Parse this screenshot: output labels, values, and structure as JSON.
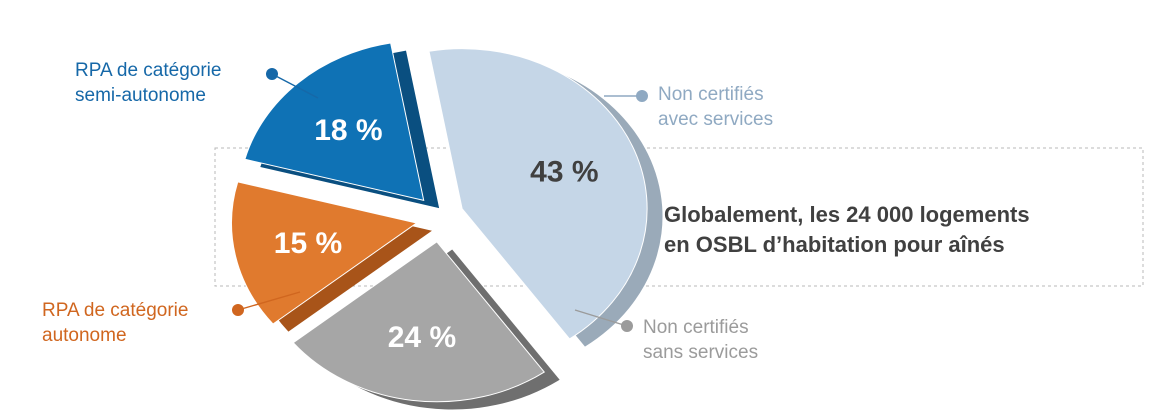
{
  "chart_data": {
    "type": "pie",
    "title": "",
    "slices": [
      {
        "key": "non-certifies-avec-services",
        "value": 43,
        "display": "43 %",
        "label_lines": [
          "Non certifiés",
          "avec services"
        ],
        "color": "#c5d6e7",
        "side": "#9aaab9",
        "label_color": "#8fa9c2"
      },
      {
        "key": "non-certifies-sans-services",
        "value": 24,
        "display": "24 %",
        "label_lines": [
          "Non certifiés",
          "sans services"
        ],
        "color": "#a6a6a6",
        "side": "#6f6f6f",
        "label_color": "#9b9b9b"
      },
      {
        "key": "rpa-autonome",
        "value": 15,
        "display": "15 %",
        "label_lines": [
          "RPA de catégorie",
          "autonome"
        ],
        "color": "#e07a2e",
        "side": "#a85419",
        "label_color": "#d0661f"
      },
      {
        "key": "rpa-semi-autonome",
        "value": 18,
        "display": "18 %",
        "label_lines": [
          "RPA de catégorie",
          "semi-autonome"
        ],
        "color": "#0f72b5",
        "side": "#0a4f80",
        "label_color": "#1668a8"
      }
    ]
  },
  "headline": {
    "line1": "Globalement, les 24 000 logements",
    "line2": "en OSBL d’habitation pour aînés"
  }
}
